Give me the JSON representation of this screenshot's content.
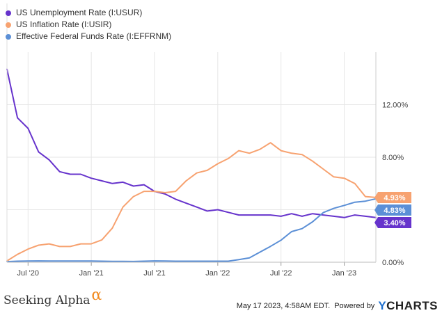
{
  "chart_data": {
    "type": "line",
    "x": [
      "2020-05",
      "2020-06",
      "2020-07",
      "2020-08",
      "2020-09",
      "2020-10",
      "2020-11",
      "2020-12",
      "2021-01",
      "2021-02",
      "2021-03",
      "2021-04",
      "2021-05",
      "2021-06",
      "2021-07",
      "2021-08",
      "2021-09",
      "2021-10",
      "2021-11",
      "2021-12",
      "2022-01",
      "2022-02",
      "2022-03",
      "2022-04",
      "2022-05",
      "2022-06",
      "2022-07",
      "2022-08",
      "2022-09",
      "2022-10",
      "2022-11",
      "2022-12",
      "2023-01",
      "2023-02",
      "2023-03",
      "2023-04"
    ],
    "series": [
      {
        "name": "US Unemployment Rate (I:USUR)",
        "color": "#6633cc",
        "values": [
          14.7,
          11.0,
          10.2,
          8.4,
          7.8,
          6.9,
          6.7,
          6.7,
          6.4,
          6.2,
          6.0,
          6.1,
          5.8,
          5.9,
          5.4,
          5.2,
          4.8,
          4.5,
          4.2,
          3.9,
          4.0,
          3.8,
          3.6,
          3.6,
          3.6,
          3.6,
          3.5,
          3.7,
          3.5,
          3.7,
          3.6,
          3.5,
          3.4,
          3.6,
          3.5,
          3.4
        ],
        "end_label": "3.40%"
      },
      {
        "name": "US Inflation Rate (I:USIR)",
        "color": "#f7a270",
        "values": [
          0.1,
          0.6,
          1.0,
          1.3,
          1.4,
          1.2,
          1.2,
          1.4,
          1.4,
          1.7,
          2.6,
          4.2,
          5.0,
          5.4,
          5.4,
          5.3,
          5.4,
          6.2,
          6.8,
          7.0,
          7.5,
          7.9,
          8.5,
          8.3,
          8.6,
          9.1,
          8.5,
          8.3,
          8.2,
          7.7,
          7.1,
          6.5,
          6.4,
          6.0,
          5.0,
          4.93
        ],
        "end_label": "4.93%"
      },
      {
        "name": "Effective Federal Funds Rate (I:EFFRNM)",
        "color": "#5b8fd6",
        "values": [
          0.05,
          0.08,
          0.09,
          0.1,
          0.09,
          0.09,
          0.09,
          0.09,
          0.09,
          0.08,
          0.07,
          0.07,
          0.06,
          0.08,
          0.1,
          0.09,
          0.08,
          0.08,
          0.08,
          0.08,
          0.08,
          0.08,
          0.2,
          0.33,
          0.77,
          1.21,
          1.68,
          2.33,
          2.56,
          3.08,
          3.78,
          4.1,
          4.33,
          4.57,
          4.65,
          4.83
        ],
        "end_label": "4.83%"
      }
    ],
    "x_tick_labels": [
      {
        "label": "Jul '20",
        "x": "2020-07"
      },
      {
        "label": "Jan '21",
        "x": "2021-01"
      },
      {
        "label": "Jul '21",
        "x": "2021-07"
      },
      {
        "label": "Jan '22",
        "x": "2022-01"
      },
      {
        "label": "Jul '22",
        "x": "2022-07"
      },
      {
        "label": "Jan '23",
        "x": "2023-01"
      }
    ],
    "y_ticks": [
      0,
      4,
      8,
      12
    ],
    "y_tick_labels": [
      "0.00%",
      "4.00%",
      "8.00%",
      "12.00%"
    ],
    "ylim": [
      0,
      16
    ],
    "grid": true,
    "legend": "top-left"
  },
  "footer": {
    "brand": "Seeking Alpha",
    "brand_symbol": "α",
    "timestamp": "May 17 2023, 4:58AM EDT.",
    "powered_by": "Powered by",
    "ycharts_y": "Y",
    "ycharts_rest": "CHARTS"
  }
}
